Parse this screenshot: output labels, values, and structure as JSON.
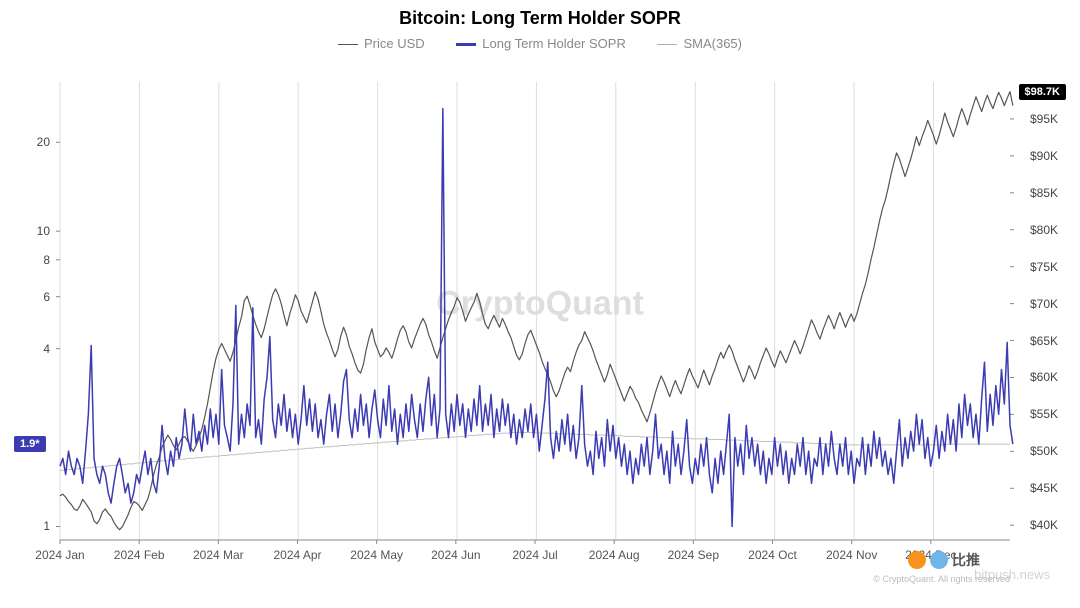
{
  "title": "Bitcoin: Long Term Holder SOPR",
  "legend": [
    {
      "label": "Price USD",
      "color": "#555555",
      "weight": 1
    },
    {
      "label": "Long Term Holder SOPR",
      "color": "#3b3bb3",
      "weight": 2
    },
    {
      "label": "SMA(365)",
      "color": "#b0b0b0",
      "weight": 1
    }
  ],
  "left_axis": {
    "type": "log",
    "min": 0.9,
    "max": 32,
    "ticks": [
      1,
      4,
      6,
      8,
      10,
      20
    ],
    "tick_color": "#444",
    "badge": {
      "value": "1.9*",
      "bg": "#3b3bb3"
    }
  },
  "right_axis": {
    "type": "linear",
    "min": 38000,
    "max": 100000,
    "ticks": [
      40000,
      45000,
      50000,
      55000,
      60000,
      65000,
      70000,
      75000,
      80000,
      85000,
      90000,
      95000
    ],
    "tick_format": "$K",
    "badge": {
      "value": "$98.7K",
      "bg": "#000000",
      "at": 98700
    }
  },
  "x_axis": {
    "labels": [
      "2024 Jan",
      "2024 Feb",
      "2024 Mar",
      "2024 Apr",
      "2024 May",
      "2024 Jun",
      "2024 Jul",
      "2024 Aug",
      "2024 Sep",
      "2024 Oct",
      "2024 Nov",
      "2024 Dec"
    ],
    "n": 336
  },
  "grid_color": "#dddddd",
  "background": "#ffffff",
  "watermark": "CryptoQuant",
  "copyright": "© CryptoQuant. All rights reserved",
  "brand": {
    "text": "比推",
    "sub": "bitpush.news",
    "dot1": "#f7931a",
    "dot2": "#6fb6e8"
  },
  "series": {
    "price_usd": {
      "axis": "right",
      "color": "#555555",
      "width": 1.2,
      "data": [
        44000,
        44200,
        43800,
        43200,
        42800,
        42200,
        42000,
        42600,
        43500,
        43000,
        42400,
        41800,
        40600,
        40200,
        40800,
        41800,
        42200,
        41600,
        41200,
        40400,
        39800,
        39400,
        39800,
        40600,
        41400,
        42400,
        43200,
        43000,
        42600,
        42000,
        42800,
        43600,
        45000,
        46800,
        48200,
        49200,
        50600,
        51400,
        52200,
        51600,
        50800,
        50200,
        51000,
        51800,
        52000,
        51400,
        50600,
        50000,
        50800,
        51800,
        53000,
        54600,
        56400,
        58600,
        60800,
        62600,
        63800,
        64600,
        63800,
        63000,
        62200,
        63400,
        65000,
        66800,
        68200,
        70400,
        71000,
        69800,
        68400,
        67200,
        66200,
        65400,
        66600,
        68200,
        69800,
        71200,
        72000,
        71200,
        70000,
        68400,
        67000,
        68600,
        69800,
        71200,
        70400,
        69000,
        68200,
        67400,
        68800,
        70200,
        71600,
        70600,
        69000,
        67200,
        66000,
        65000,
        63800,
        62800,
        63800,
        65600,
        66800,
        65800,
        64200,
        63200,
        62000,
        61000,
        60600,
        61800,
        63800,
        65400,
        66600,
        64800,
        63800,
        62800,
        63200,
        64000,
        63400,
        62600,
        63800,
        65200,
        66400,
        67000,
        66200,
        64800,
        64000,
        65200,
        66200,
        67200,
        68000,
        67200,
        65800,
        64800,
        63600,
        62600,
        64000,
        65400,
        66600,
        67800,
        68800,
        69600,
        70800,
        70200,
        69000,
        67600,
        68600,
        69400,
        70200,
        71400,
        70200,
        68600,
        67200,
        66600,
        67600,
        68400,
        67600,
        66800,
        68000,
        67200,
        66200,
        65400,
        64200,
        63000,
        62400,
        63200,
        64600,
        65800,
        66400,
        65400,
        64400,
        63400,
        62200,
        61200,
        60400,
        59400,
        58200,
        57400,
        58200,
        59400,
        60600,
        61400,
        60800,
        62200,
        63400,
        64400,
        65000,
        66200,
        65400,
        64600,
        63600,
        62400,
        61400,
        60400,
        59400,
        60400,
        61800,
        60800,
        59800,
        58800,
        57800,
        56800,
        57800,
        58800,
        58200,
        57200,
        56600,
        55600,
        54800,
        54000,
        55200,
        56600,
        58000,
        59200,
        60200,
        59400,
        58400,
        57400,
        58600,
        59600,
        58600,
        57800,
        59000,
        60200,
        61200,
        60200,
        59400,
        58600,
        59800,
        61000,
        60000,
        59000,
        60200,
        61200,
        62400,
        63400,
        62600,
        63600,
        64400,
        63600,
        62400,
        61400,
        60400,
        59400,
        60400,
        61600,
        60800,
        59800,
        60800,
        62000,
        63000,
        64000,
        63200,
        62200,
        61400,
        62600,
        63600,
        62800,
        62000,
        63000,
        64000,
        65000,
        64200,
        63200,
        64200,
        65400,
        66600,
        67800,
        67000,
        66000,
        65200,
        66400,
        67400,
        68400,
        67600,
        66600,
        67800,
        68800,
        67800,
        66800,
        67800,
        68600,
        67600,
        68600,
        70000,
        71400,
        72600,
        74200,
        76000,
        77600,
        79400,
        81200,
        82800,
        84000,
        85600,
        87400,
        89000,
        90400,
        89600,
        88400,
        87200,
        88400,
        89600,
        91000,
        92600,
        91400,
        92600,
        93600,
        94800,
        93800,
        92800,
        91600,
        92800,
        94200,
        95800,
        94600,
        93600,
        92600,
        93800,
        95200,
        96400,
        95400,
        94200,
        95600,
        96800,
        98000,
        97000,
        96000,
        97200,
        98200,
        97200,
        96400,
        97600,
        98600,
        97800,
        96800,
        97800,
        98700,
        96800
      ]
    },
    "sopr": {
      "axis": "left",
      "color": "#3b3bb3",
      "width": 1.5,
      "data": [
        1.6,
        1.7,
        1.5,
        1.8,
        1.6,
        1.5,
        1.7,
        1.6,
        1.4,
        1.8,
        2.4,
        4.1,
        1.7,
        1.5,
        1.4,
        1.6,
        1.5,
        1.3,
        1.2,
        1.4,
        1.6,
        1.7,
        1.5,
        1.3,
        1.4,
        1.2,
        1.3,
        1.5,
        1.4,
        1.6,
        1.8,
        1.5,
        1.7,
        1.4,
        1.3,
        1.6,
        2.2,
        1.7,
        1.5,
        1.8,
        1.6,
        2.0,
        1.7,
        1.9,
        2.5,
        2.0,
        1.8,
        2.4,
        1.9,
        2.1,
        1.8,
        2.2,
        1.9,
        2.5,
        2.0,
        2.4,
        1.9,
        3.4,
        2.2,
        2.0,
        1.8,
        2.6,
        5.6,
        1.9,
        2.4,
        2.0,
        2.6,
        2.2,
        5.5,
        2.0,
        2.3,
        1.9,
        2.7,
        3.2,
        4.4,
        2.3,
        2.0,
        2.6,
        2.2,
        2.8,
        2.1,
        2.5,
        2.0,
        2.4,
        1.9,
        2.3,
        3.0,
        2.2,
        2.7,
        2.1,
        2.6,
        2.0,
        2.3,
        1.9,
        2.4,
        2.8,
        2.1,
        2.6,
        2.0,
        2.4,
        3.1,
        3.4,
        2.3,
        2.0,
        2.5,
        2.1,
        2.8,
        2.2,
        2.6,
        2.0,
        2.5,
        2.9,
        2.3,
        2.0,
        2.7,
        2.2,
        3.0,
        2.1,
        2.5,
        1.9,
        2.4,
        2.0,
        2.6,
        2.1,
        2.8,
        2.3,
        2.0,
        2.6,
        2.1,
        2.7,
        3.2,
        2.2,
        2.8,
        2.0,
        2.5,
        26.0,
        2.4,
        2.0,
        2.6,
        2.1,
        2.8,
        2.2,
        2.6,
        2.0,
        2.5,
        2.1,
        2.7,
        2.2,
        3.0,
        2.1,
        2.6,
        2.2,
        2.8,
        2.0,
        2.5,
        2.1,
        2.7,
        2.2,
        2.6,
        2.0,
        2.4,
        1.9,
        2.3,
        2.0,
        2.5,
        2.1,
        2.6,
        2.0,
        2.4,
        1.8,
        2.2,
        2.7,
        3.6,
        2.0,
        1.7,
        2.1,
        1.8,
        2.3,
        1.9,
        2.4,
        1.8,
        2.2,
        1.7,
        2.0,
        3.0,
        1.9,
        1.6,
        1.8,
        1.5,
        2.1,
        1.7,
        2.0,
        1.6,
        2.3,
        1.8,
        2.2,
        1.7,
        2.0,
        1.6,
        1.9,
        1.5,
        1.8,
        1.4,
        1.7,
        1.5,
        1.9,
        1.6,
        2.0,
        1.5,
        1.8,
        2.4,
        1.7,
        1.9,
        1.5,
        1.8,
        1.4,
        2.1,
        1.6,
        1.9,
        1.5,
        1.8,
        2.3,
        1.6,
        1.4,
        1.7,
        1.5,
        1.9,
        1.6,
        2.0,
        1.5,
        1.3,
        1.7,
        1.4,
        1.8,
        1.5,
        1.9,
        2.4,
        1.0,
        2.0,
        1.6,
        1.9,
        1.5,
        2.2,
        1.7,
        2.0,
        1.6,
        1.9,
        1.5,
        1.8,
        1.4,
        1.7,
        1.5,
        2.0,
        1.6,
        1.9,
        1.5,
        1.8,
        1.4,
        1.7,
        1.5,
        1.9,
        1.6,
        2.0,
        1.5,
        1.8,
        1.4,
        1.7,
        1.6,
        2.0,
        1.5,
        1.9,
        1.6,
        2.1,
        1.7,
        1.5,
        1.9,
        1.6,
        2.0,
        1.5,
        1.8,
        1.4,
        1.7,
        1.6,
        2.0,
        1.5,
        1.9,
        1.6,
        2.1,
        1.7,
        2.0,
        1.6,
        1.8,
        1.5,
        1.7,
        1.4,
        1.8,
        2.3,
        1.6,
        2.0,
        1.7,
        2.1,
        1.8,
        2.4,
        1.9,
        2.3,
        1.7,
        2.0,
        1.6,
        1.8,
        2.2,
        1.7,
        2.1,
        1.8,
        2.4,
        1.9,
        2.3,
        1.8,
        2.6,
        2.0,
        2.8,
        2.2,
        2.6,
        2.0,
        2.4,
        1.9,
        2.7,
        3.6,
        2.1,
        2.8,
        2.2,
        3.0,
        2.4,
        3.4,
        2.6,
        4.2,
        2.2,
        1.9
      ]
    },
    "sma": {
      "axis": "left",
      "color": "#c0c0c0",
      "width": 1,
      "data": [
        1.55,
        1.55,
        1.55,
        1.56,
        1.56,
        1.56,
        1.57,
        1.57,
        1.57,
        1.58,
        1.58,
        1.58,
        1.59,
        1.59,
        1.59,
        1.6,
        1.6,
        1.6,
        1.61,
        1.61,
        1.61,
        1.62,
        1.62,
        1.62,
        1.63,
        1.63,
        1.63,
        1.64,
        1.64,
        1.64,
        1.65,
        1.65,
        1.65,
        1.66,
        1.66,
        1.66,
        1.67,
        1.67,
        1.67,
        1.68,
        1.68,
        1.68,
        1.69,
        1.69,
        1.69,
        1.7,
        1.7,
        1.7,
        1.71,
        1.71,
        1.71,
        1.72,
        1.72,
        1.72,
        1.73,
        1.73,
        1.73,
        1.74,
        1.74,
        1.74,
        1.75,
        1.75,
        1.75,
        1.76,
        1.76,
        1.76,
        1.77,
        1.77,
        1.77,
        1.78,
        1.78,
        1.78,
        1.79,
        1.79,
        1.79,
        1.8,
        1.8,
        1.8,
        1.81,
        1.81,
        1.81,
        1.82,
        1.82,
        1.82,
        1.83,
        1.83,
        1.83,
        1.84,
        1.84,
        1.84,
        1.85,
        1.85,
        1.85,
        1.86,
        1.86,
        1.86,
        1.87,
        1.87,
        1.87,
        1.88,
        1.88,
        1.88,
        1.89,
        1.89,
        1.89,
        1.9,
        1.9,
        1.9,
        1.91,
        1.91,
        1.91,
        1.92,
        1.92,
        1.92,
        1.93,
        1.93,
        1.93,
        1.94,
        1.94,
        1.94,
        1.95,
        1.95,
        1.95,
        1.96,
        1.96,
        1.96,
        1.97,
        1.97,
        1.97,
        1.98,
        1.98,
        1.98,
        1.99,
        1.99,
        1.99,
        2.0,
        2.0,
        2.0,
        2.01,
        2.01,
        2.01,
        2.02,
        2.02,
        2.02,
        2.03,
        2.03,
        2.03,
        2.04,
        2.04,
        2.04,
        2.05,
        2.05,
        2.05,
        2.06,
        2.06,
        2.06,
        2.07,
        2.07,
        2.07,
        2.08,
        2.08,
        2.08,
        2.08,
        2.08,
        2.08,
        2.08,
        2.08,
        2.08,
        2.08,
        2.07,
        2.07,
        2.07,
        2.07,
        2.07,
        2.07,
        2.06,
        2.06,
        2.06,
        2.06,
        2.06,
        2.06,
        2.05,
        2.05,
        2.05,
        2.05,
        2.05,
        2.05,
        2.04,
        2.04,
        2.04,
        2.04,
        2.04,
        2.04,
        2.03,
        2.03,
        2.03,
        2.03,
        2.03,
        2.03,
        2.02,
        2.02,
        2.02,
        2.02,
        2.02,
        2.02,
        2.01,
        2.01,
        2.01,
        2.01,
        2.01,
        2.01,
        2.0,
        2.0,
        2.0,
        2.0,
        2.0,
        2.0,
        1.99,
        1.99,
        1.99,
        1.99,
        1.99,
        1.99,
        1.98,
        1.98,
        1.98,
        1.98,
        1.98,
        1.98,
        1.97,
        1.97,
        1.97,
        1.97,
        1.97,
        1.97,
        1.96,
        1.96,
        1.96,
        1.96,
        1.96,
        1.96,
        1.95,
        1.95,
        1.95,
        1.95,
        1.95,
        1.95,
        1.94,
        1.94,
        1.94,
        1.94,
        1.94,
        1.94,
        1.93,
        1.93,
        1.93,
        1.93,
        1.93,
        1.93,
        1.92,
        1.92,
        1.92,
        1.92,
        1.92,
        1.92,
        1.91,
        1.91,
        1.91,
        1.91,
        1.91,
        1.91,
        1.9,
        1.9,
        1.9,
        1.9,
        1.9,
        1.9,
        1.89,
        1.89,
        1.89,
        1.89,
        1.89,
        1.89,
        1.89,
        1.89,
        1.89,
        1.89,
        1.89,
        1.89,
        1.89,
        1.89,
        1.89,
        1.89,
        1.89,
        1.89,
        1.89,
        1.89,
        1.89,
        1.89,
        1.89,
        1.89,
        1.89,
        1.89,
        1.89,
        1.89,
        1.89,
        1.89,
        1.89,
        1.89,
        1.89,
        1.89,
        1.89,
        1.89,
        1.9,
        1.9,
        1.9,
        1.9,
        1.9,
        1.9,
        1.9,
        1.9,
        1.9,
        1.9,
        1.9,
        1.9,
        1.9,
        1.9,
        1.9,
        1.9,
        1.9,
        1.9,
        1.9,
        1.9,
        1.9,
        1.9,
        1.9
      ]
    }
  }
}
